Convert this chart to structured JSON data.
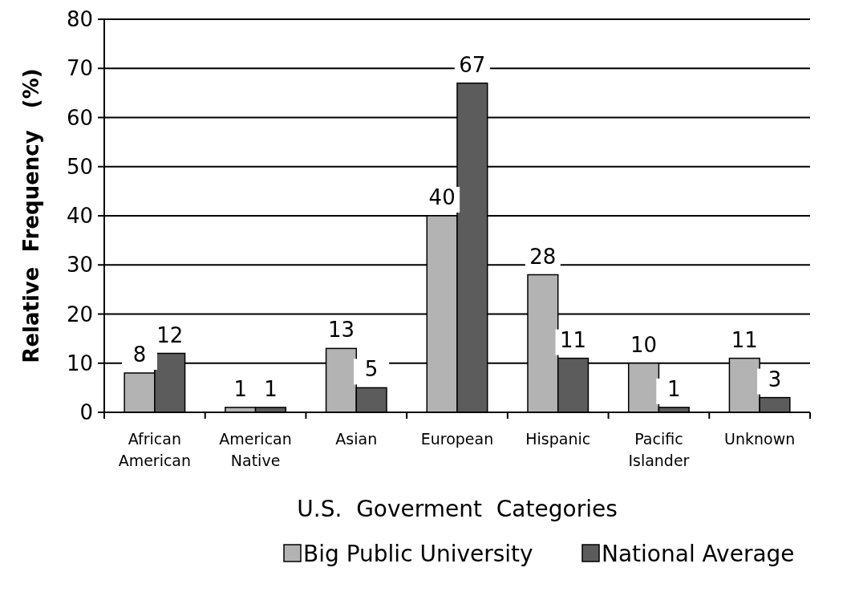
{
  "chart_data": {
    "type": "bar",
    "xlabel": "U.S.  Goverment  Categories",
    "ylabel": "Relative  Frequency   (%)",
    "categories": [
      "African American",
      "American Native",
      "Asian",
      "European",
      "Hispanic",
      "Pacific Islander",
      "Unknown"
    ],
    "series": [
      {
        "name": "Big Public University",
        "color": "#b3b3b3",
        "values": [
          8,
          1,
          13,
          40,
          28,
          10,
          11
        ]
      },
      {
        "name": "National Average",
        "color": "#5c5c5c",
        "values": [
          12,
          1,
          5,
          67,
          11,
          1,
          3
        ]
      }
    ],
    "ylim": [
      0,
      80
    ],
    "yticks": [
      0,
      10,
      20,
      30,
      40,
      50,
      60,
      70,
      80
    ],
    "grid": "y",
    "data_labels": true,
    "legend": "bottom"
  }
}
